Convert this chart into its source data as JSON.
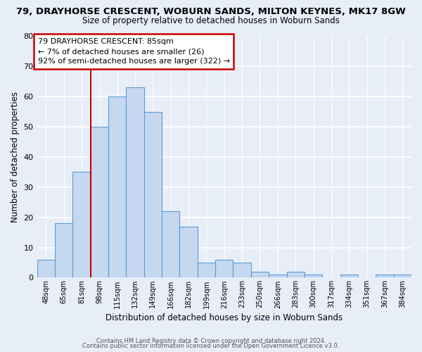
{
  "title": "79, DRAYHORSE CRESCENT, WOBURN SANDS, MILTON KEYNES, MK17 8GW",
  "subtitle": "Size of property relative to detached houses in Woburn Sands",
  "xlabel": "Distribution of detached houses by size in Woburn Sands",
  "ylabel": "Number of detached properties",
  "bar_labels": [
    "48sqm",
    "65sqm",
    "81sqm",
    "98sqm",
    "115sqm",
    "132sqm",
    "149sqm",
    "166sqm",
    "182sqm",
    "199sqm",
    "216sqm",
    "233sqm",
    "250sqm",
    "266sqm",
    "283sqm",
    "300sqm",
    "317sqm",
    "334sqm",
    "351sqm",
    "367sqm",
    "384sqm"
  ],
  "bar_values": [
    6,
    18,
    35,
    50,
    60,
    63,
    55,
    22,
    17,
    5,
    6,
    5,
    2,
    1,
    2,
    1,
    0,
    1,
    0,
    1,
    1
  ],
  "bar_color": "#c5d8f0",
  "bar_edge_color": "#5b9bd5",
  "ylim": [
    0,
    80
  ],
  "yticks": [
    0,
    10,
    20,
    30,
    40,
    50,
    60,
    70,
    80
  ],
  "red_line_x": 2.5,
  "red_line_color": "#cc0000",
  "annotation_line1": "79 DRAYHORSE CRESCENT: 85sqm",
  "annotation_line2": "← 7% of detached houses are smaller (26)",
  "annotation_line3": "92% of semi-detached houses are larger (322) →",
  "annotation_box_color": "#cc0000",
  "annotation_box_bg": "#ffffff",
  "footer1": "Contains HM Land Registry data © Crown copyright and database right 2024.",
  "footer2": "Contains public sector information licensed under the Open Government Licence v3.0.",
  "bg_color": "#e8eef8",
  "title_fontsize": 9.5,
  "subtitle_fontsize": 8.5
}
